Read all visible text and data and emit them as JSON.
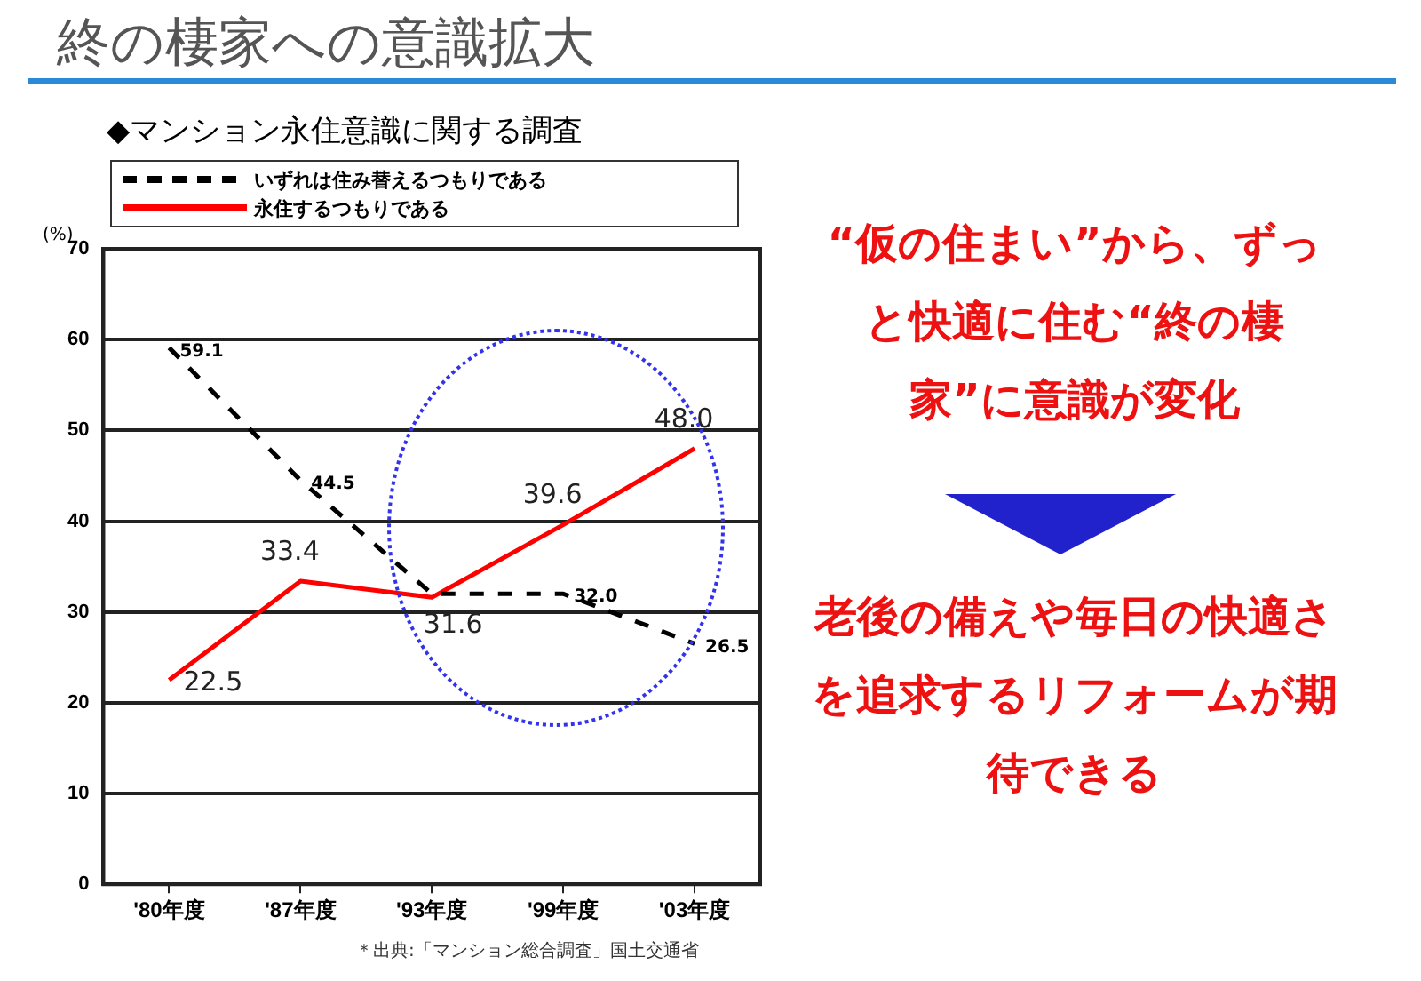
{
  "chart_data": {
    "type": "line",
    "title": "終の棲家への意識拡大",
    "subtitle": "◆マンション永住意識に関する調査",
    "ylabel": "(%)",
    "categories": [
      "'80年度",
      "'87年度",
      "'93年度",
      "'99年度",
      "'03年度"
    ],
    "series": [
      {
        "name": "いずれは住み替えるつもりである",
        "color": "#000000",
        "line_style": "dashed",
        "values": [
          59.1,
          44.5,
          32.0,
          32.0,
          26.5
        ],
        "value_labels": [
          "59.1",
          "44.5",
          null,
          "32.0",
          "26.5"
        ]
      },
      {
        "name": "永住するつもりである",
        "color": "#ff0000",
        "line_style": "solid",
        "values": [
          22.5,
          33.4,
          31.6,
          39.6,
          48.0
        ],
        "value_labels": [
          "22.5",
          "33.4",
          "31.6",
          "39.6",
          "48.0"
        ]
      }
    ],
    "ylim": [
      0,
      70
    ],
    "yticks": [
      0,
      10,
      20,
      30,
      40,
      50,
      60,
      70
    ],
    "grid": "y",
    "legend": "top",
    "marker": "none",
    "annotations": [
      "“仮の住まい”から、ずっと快適に住む“終の棲家”に意識が変化",
      "老後の備えや毎日の快適さを追求するリフォームが期待できる",
      "＊出典:「マンション総合調査」国土交通省"
    ]
  }
}
